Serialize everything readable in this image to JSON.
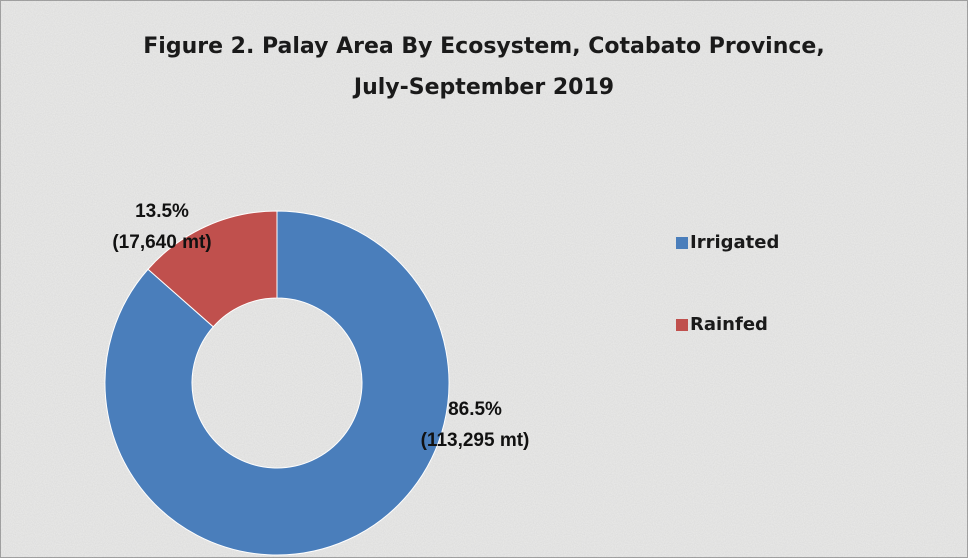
{
  "chart_data": {
    "type": "donut",
    "title": "Figure 2. Palay Area By Ecosystem, Cotabato Province,",
    "subtitle": "July-September 2019",
    "categories": [
      "Irrigated",
      "Rainfed"
    ],
    "values": [
      86.5,
      13.5
    ],
    "value_labels": [
      "86.5%",
      "13.5%"
    ],
    "amount_labels": [
      "(113,295 mt)",
      "(17,640 mt)"
    ],
    "colors": [
      "#4a7ebb",
      "#c0504d"
    ],
    "legend": "right"
  }
}
